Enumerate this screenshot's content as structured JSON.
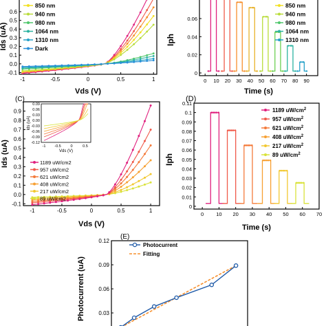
{
  "chart_data": [
    {
      "panel": "A",
      "type": "line",
      "xlabel": "Vds (V)",
      "ylabel": "Ids (uA)",
      "xlim": [
        -1.05,
        1.05
      ],
      "ylim": [
        -0.12,
        0.75
      ],
      "xticks": [
        -1,
        -0.5,
        0,
        0.5,
        1
      ],
      "xtick_labels": [
        "-1",
        "-0.5",
        "0",
        "0.5",
        "1"
      ],
      "yticks": [
        -0.1,
        0.0,
        0.1,
        0.2,
        0.3,
        0.4,
        0.5,
        0.6
      ],
      "ytick_labels": [
        "-0.1",
        "0.0",
        "0.1",
        "0.2",
        "0.3",
        "0.4",
        "0.5",
        "0.6"
      ],
      "legend_position": "top-left",
      "series": [
        {
          "name": "850 nm",
          "color": "#f2e022",
          "values": {
            "pos": 0.55,
            "neg": -0.09
          }
        },
        {
          "name": "940 nm",
          "color": "#b8dc3a",
          "values": {
            "pos": 0.45,
            "neg": -0.08
          }
        },
        {
          "name": "980 nm",
          "color": "#4ec66a",
          "values": {
            "pos": 0.12,
            "neg": -0.06
          }
        },
        {
          "name": "1064 nm",
          "color": "#2bb3a0",
          "values": {
            "pos": 0.09,
            "neg": -0.05
          }
        },
        {
          "name": "1310 nm",
          "color": "#25a0c8",
          "values": {
            "pos": 0.06,
            "neg": -0.04
          }
        },
        {
          "name": "Dark",
          "color": "#2a8fd8",
          "values": {
            "pos": 0.04,
            "neg": -0.03
          }
        }
      ],
      "extra_series": [
        {
          "color": "#e0207e",
          "values": {
            "pos": 0.9,
            "neg": -0.11
          }
        },
        {
          "color": "#f05a4a",
          "values": {
            "pos": 0.75,
            "neg": -0.1
          }
        },
        {
          "color": "#f7902e",
          "values": {
            "pos": 0.65,
            "neg": -0.095
          }
        }
      ]
    },
    {
      "panel": "B",
      "type": "line",
      "xlabel": "Time (s)",
      "ylabel": "Iph",
      "xlim": [
        -5,
        100
      ],
      "ylim": [
        -0.003,
        0.082
      ],
      "xticks": [
        0,
        10,
        20,
        30,
        40,
        50,
        60,
        70,
        80,
        90
      ],
      "xtick_labels": [
        "0",
        "10",
        "20",
        "30",
        "40",
        "50",
        "60",
        "70",
        "80",
        "90"
      ],
      "yticks": [
        0.0,
        0.02,
        0.04,
        0.06
      ],
      "ytick_labels": [
        "0",
        "0.02",
        "0.04",
        "0.06"
      ],
      "legend_position": "top-right",
      "legend": [
        "850 nm",
        "940 nm",
        "980 nm",
        "1064 nm",
        "1310 nm"
      ],
      "pulses": [
        {
          "on": 5,
          "off": 10,
          "height": 0.09,
          "color": "#e0207e"
        },
        {
          "on": 17,
          "off": 22,
          "height": 0.085,
          "color": "#f05a4a"
        },
        {
          "on": 28,
          "off": 33,
          "height": 0.078,
          "color": "#f7902e"
        },
        {
          "on": 39,
          "off": 44,
          "height": 0.072,
          "color": "#e8b22a"
        },
        {
          "on": 51,
          "off": 56,
          "height": 0.062,
          "color": "#b8dc3a"
        },
        {
          "on": 62,
          "off": 67,
          "height": 0.045,
          "color": "#6ccf52"
        },
        {
          "on": 73,
          "off": 78,
          "height": 0.03,
          "color": "#2bb3a0"
        },
        {
          "on": 84,
          "off": 88,
          "height": 0.012,
          "color": "#25a0c8"
        }
      ],
      "baseline": 0.002
    },
    {
      "panel": "C",
      "type": "line",
      "xlabel": "Vds (V)",
      "ylabel": "Ids (uA)",
      "xlim": [
        -1.15,
        1.15
      ],
      "ylim": [
        -0.12,
        1.0
      ],
      "xticks": [
        -1,
        -0.5,
        0,
        0.5,
        1
      ],
      "xtick_labels": [
        "-1",
        "-0.5",
        "0",
        "0.5",
        "1"
      ],
      "yticks": [
        -0.1,
        0.0,
        0.1,
        0.2,
        0.3,
        0.4,
        0.5,
        0.6,
        0.7,
        0.8,
        0.9
      ],
      "ytick_labels": [
        "-0.1",
        "0.0",
        "0.1",
        "0.2",
        "0.3",
        "0.4",
        "0.5",
        "0.6",
        "0.7",
        "0.8",
        "0.9"
      ],
      "legend_position": "lower-left",
      "series": [
        {
          "name": "1189 uW/cm2",
          "color": "#e0207e",
          "values": {
            "pos": 0.96,
            "neg": -0.11
          }
        },
        {
          "name": "957 uW/cm2",
          "color": "#f05a4a",
          "values": {
            "pos": 0.7,
            "neg": -0.09
          }
        },
        {
          "name": "621 uW/cm2",
          "color": "#f47a3a",
          "values": {
            "pos": 0.53,
            "neg": -0.075
          }
        },
        {
          "name": "408 uW/cm2",
          "color": "#f7a032",
          "values": {
            "pos": 0.37,
            "neg": -0.06
          }
        },
        {
          "name": "217 uW/cm2",
          "color": "#f2c830",
          "values": {
            "pos": 0.22,
            "neg": -0.045
          }
        },
        {
          "name": "89 uW/cm2",
          "color": "#d9e23a",
          "values": {
            "pos": 0.13,
            "neg": -0.03
          }
        }
      ],
      "inset": {
        "xlabel": "Vds (V)",
        "ylabel": "Ids (uA)",
        "xlim": [
          -1.1,
          0.7
        ],
        "ylim": [
          -0.12,
          0.09
        ],
        "xticks": [
          -1,
          -0.5,
          0,
          0.5
        ],
        "xtick_labels": [
          "-1",
          "-0.5",
          "0",
          "0.5"
        ],
        "yticks": [
          -0.12,
          -0.09,
          -0.06,
          -0.03,
          0.0,
          0.03,
          0.06,
          0.09
        ],
        "ytick_labels": [
          "-0.12",
          "-0.09",
          "-0.06",
          "-0.03",
          "0.00",
          "0.03",
          "0.06",
          "0.09"
        ]
      }
    },
    {
      "panel": "D",
      "type": "line",
      "xlabel": "Time (s)",
      "ylabel": "Iph",
      "xlim": [
        -5,
        70
      ],
      "ylim": [
        -0.003,
        0.11
      ],
      "xticks": [
        0,
        10,
        20,
        30,
        40,
        50,
        60,
        70
      ],
      "xtick_labels": [
        "0",
        "10",
        "20",
        "30",
        "40",
        "50",
        "60",
        "70"
      ],
      "yticks": [
        0.0,
        0.01,
        0.02,
        0.03,
        0.04,
        0.05,
        0.06,
        0.07,
        0.08,
        0.09,
        0.1,
        0.11
      ],
      "ytick_labels": [
        "0",
        "0.01",
        "0.02",
        "0.03",
        "0.04",
        "0.05",
        "0.06",
        "0.07",
        "0.08",
        "0.09",
        "0.1",
        "0.11"
      ],
      "legend_position": "top-right",
      "legend": [
        "1189 uW/cm2",
        "957 uW/cm2",
        "621 uW/cm2",
        "408 uW/cm2",
        "217 uW/cm2",
        "89 uW/cm2"
      ],
      "pulses": [
        {
          "on": 5,
          "off": 10,
          "height": 0.1,
          "color": "#e0207e"
        },
        {
          "on": 15,
          "off": 20,
          "height": 0.081,
          "color": "#f05a4a"
        },
        {
          "on": 25,
          "off": 30,
          "height": 0.065,
          "color": "#f47a3a"
        },
        {
          "on": 36,
          "off": 41,
          "height": 0.049,
          "color": "#f7a032"
        },
        {
          "on": 46,
          "off": 51,
          "height": 0.038,
          "color": "#f2c830"
        },
        {
          "on": 56,
          "off": 61,
          "height": 0.025,
          "color": "#d9e23a"
        }
      ],
      "baseline": 0.003
    },
    {
      "panel": "E",
      "type": "line",
      "ylabel": "Photocurrent (uA)",
      "ylim": [
        0.0,
        0.12
      ],
      "yticks": [
        0.03,
        0.06,
        0.09,
        0.12
      ],
      "ytick_labels": [
        "0.03",
        "0.06",
        "0.09",
        "0.12"
      ],
      "legend_position": "top-left",
      "series": [
        {
          "name": "Photocurrent",
          "color": "#1f5aa8",
          "x": [
            89,
            217,
            408,
            621,
            957,
            1189
          ],
          "y": [
            0.012,
            0.024,
            0.038,
            0.049,
            0.065,
            0.089
          ]
        },
        {
          "name": "Fitting",
          "color": "#f7902e",
          "x": [
            89,
            1189
          ],
          "y": [
            0.012,
            0.089
          ]
        }
      ]
    }
  ],
  "figure": {
    "panel_labels": [
      "(C)",
      "(D)",
      "(E)"
    ],
    "subscript": "ph",
    "superscript": "2",
    "unit_prefix": "uW/cm"
  }
}
